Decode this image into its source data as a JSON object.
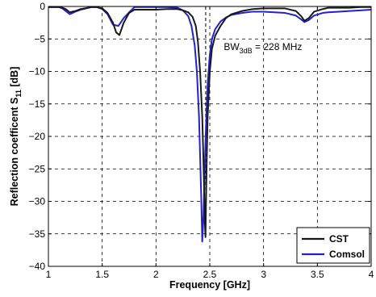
{
  "chart_data": {
    "type": "line",
    "title": "",
    "xlabel": "Frequency [GHz]",
    "ylabel": {
      "main": "Reflection coefficent S",
      "sub": "11",
      "unit": " [dB]"
    },
    "xlim": [
      1,
      4
    ],
    "ylim": [
      -40,
      0
    ],
    "xticks": [
      1,
      1.5,
      2,
      2.5,
      3,
      3.5,
      4
    ],
    "xtick_labels": [
      "1",
      "1.5",
      "2",
      "2.5",
      "3",
      "3.5",
      "4"
    ],
    "yticks": [
      0,
      -5,
      -10,
      -15,
      -20,
      -25,
      -30,
      -35,
      -40
    ],
    "ytick_labels": [
      "0",
      "−5",
      "−10",
      "−15",
      "−20",
      "−25",
      "−30",
      "−35",
      "−40"
    ],
    "grid": true,
    "legend_position": "bottom-right",
    "annotations": [
      {
        "text_main": "BW",
        "text_sub": "3dB",
        "text_rest": " = 228 MHz",
        "x": 2.63,
        "y": -6.7
      },
      {
        "type": "vline",
        "x": 2.462,
        "y_from": 0,
        "y_to": -35.5
      }
    ],
    "series": [
      {
        "name": "CST",
        "color": "#1a1a1a",
        "x": [
          1.0,
          1.05,
          1.1,
          1.13,
          1.16,
          1.2,
          1.25,
          1.3,
          1.4,
          1.45,
          1.5,
          1.55,
          1.6,
          1.63,
          1.66,
          1.7,
          1.75,
          1.8,
          1.9,
          2.0,
          2.1,
          2.2,
          2.25,
          2.3,
          2.34,
          2.37,
          2.39,
          2.41,
          2.43,
          2.44,
          2.45,
          2.455,
          2.46,
          2.465,
          2.47,
          2.48,
          2.5,
          2.52,
          2.55,
          2.6,
          2.65,
          2.7,
          2.8,
          2.9,
          3.0,
          3.1,
          3.2,
          3.3,
          3.35,
          3.38,
          3.42,
          3.47,
          3.55,
          3.6,
          3.7,
          3.8,
          3.9,
          4.0
        ],
        "y": [
          -0.1,
          -0.1,
          -0.1,
          -0.2,
          -0.4,
          -0.9,
          -0.7,
          -0.4,
          -0.1,
          -0.1,
          -0.3,
          -1.0,
          -2.5,
          -4.0,
          -4.4,
          -2.5,
          -1.0,
          -0.5,
          -0.5,
          -0.5,
          -0.4,
          -0.4,
          -0.6,
          -0.9,
          -1.6,
          -3.0,
          -5.5,
          -10.0,
          -17.0,
          -23.0,
          -30.0,
          -33.5,
          -35.5,
          -30.0,
          -25.0,
          -17.0,
          -10.0,
          -6.5,
          -4.5,
          -3.0,
          -1.8,
          -1.2,
          -0.7,
          -0.4,
          -0.3,
          -0.3,
          -0.3,
          -0.7,
          -1.5,
          -2.2,
          -1.8,
          -0.8,
          -0.4,
          -0.2,
          -0.2,
          -0.2,
          -0.1,
          -0.1
        ]
      },
      {
        "name": "Comsol",
        "color": "#2222cc",
        "x": [
          1.0,
          1.05,
          1.1,
          1.13,
          1.16,
          1.2,
          1.25,
          1.3,
          1.4,
          1.45,
          1.5,
          1.55,
          1.6,
          1.65,
          1.7,
          1.75,
          1.8,
          1.85,
          1.9,
          2.0,
          2.1,
          2.2,
          2.25,
          2.3,
          2.33,
          2.36,
          2.38,
          2.4,
          2.41,
          2.42,
          2.43,
          2.44,
          2.45,
          2.46,
          2.47,
          2.48,
          2.5,
          2.52,
          2.55,
          2.6,
          2.65,
          2.7,
          2.8,
          2.9,
          3.0,
          3.1,
          3.2,
          3.3,
          3.35,
          3.38,
          3.42,
          3.47,
          3.55,
          3.6,
          3.7,
          3.8,
          3.9,
          4.0
        ],
        "y": [
          -0.1,
          -0.1,
          -0.1,
          -0.3,
          -0.7,
          -1.2,
          -0.8,
          -0.5,
          -0.1,
          -0.1,
          -0.4,
          -1.2,
          -2.8,
          -3.0,
          -1.8,
          -0.9,
          -0.1,
          -0.1,
          -0.1,
          -0.1,
          -0.1,
          -0.2,
          -0.6,
          -1.5,
          -3.0,
          -6.0,
          -10.0,
          -17.0,
          -23.0,
          -29.0,
          -36.2,
          -33.0,
          -27.0,
          -21.0,
          -16.0,
          -12.0,
          -7.5,
          -5.0,
          -3.5,
          -2.3,
          -1.7,
          -1.3,
          -1.0,
          -0.8,
          -0.8,
          -0.9,
          -1.0,
          -1.4,
          -2.0,
          -2.4,
          -2.1,
          -1.4,
          -1.0,
          -0.9,
          -0.8,
          -0.7,
          -0.6,
          -0.5
        ]
      }
    ]
  }
}
